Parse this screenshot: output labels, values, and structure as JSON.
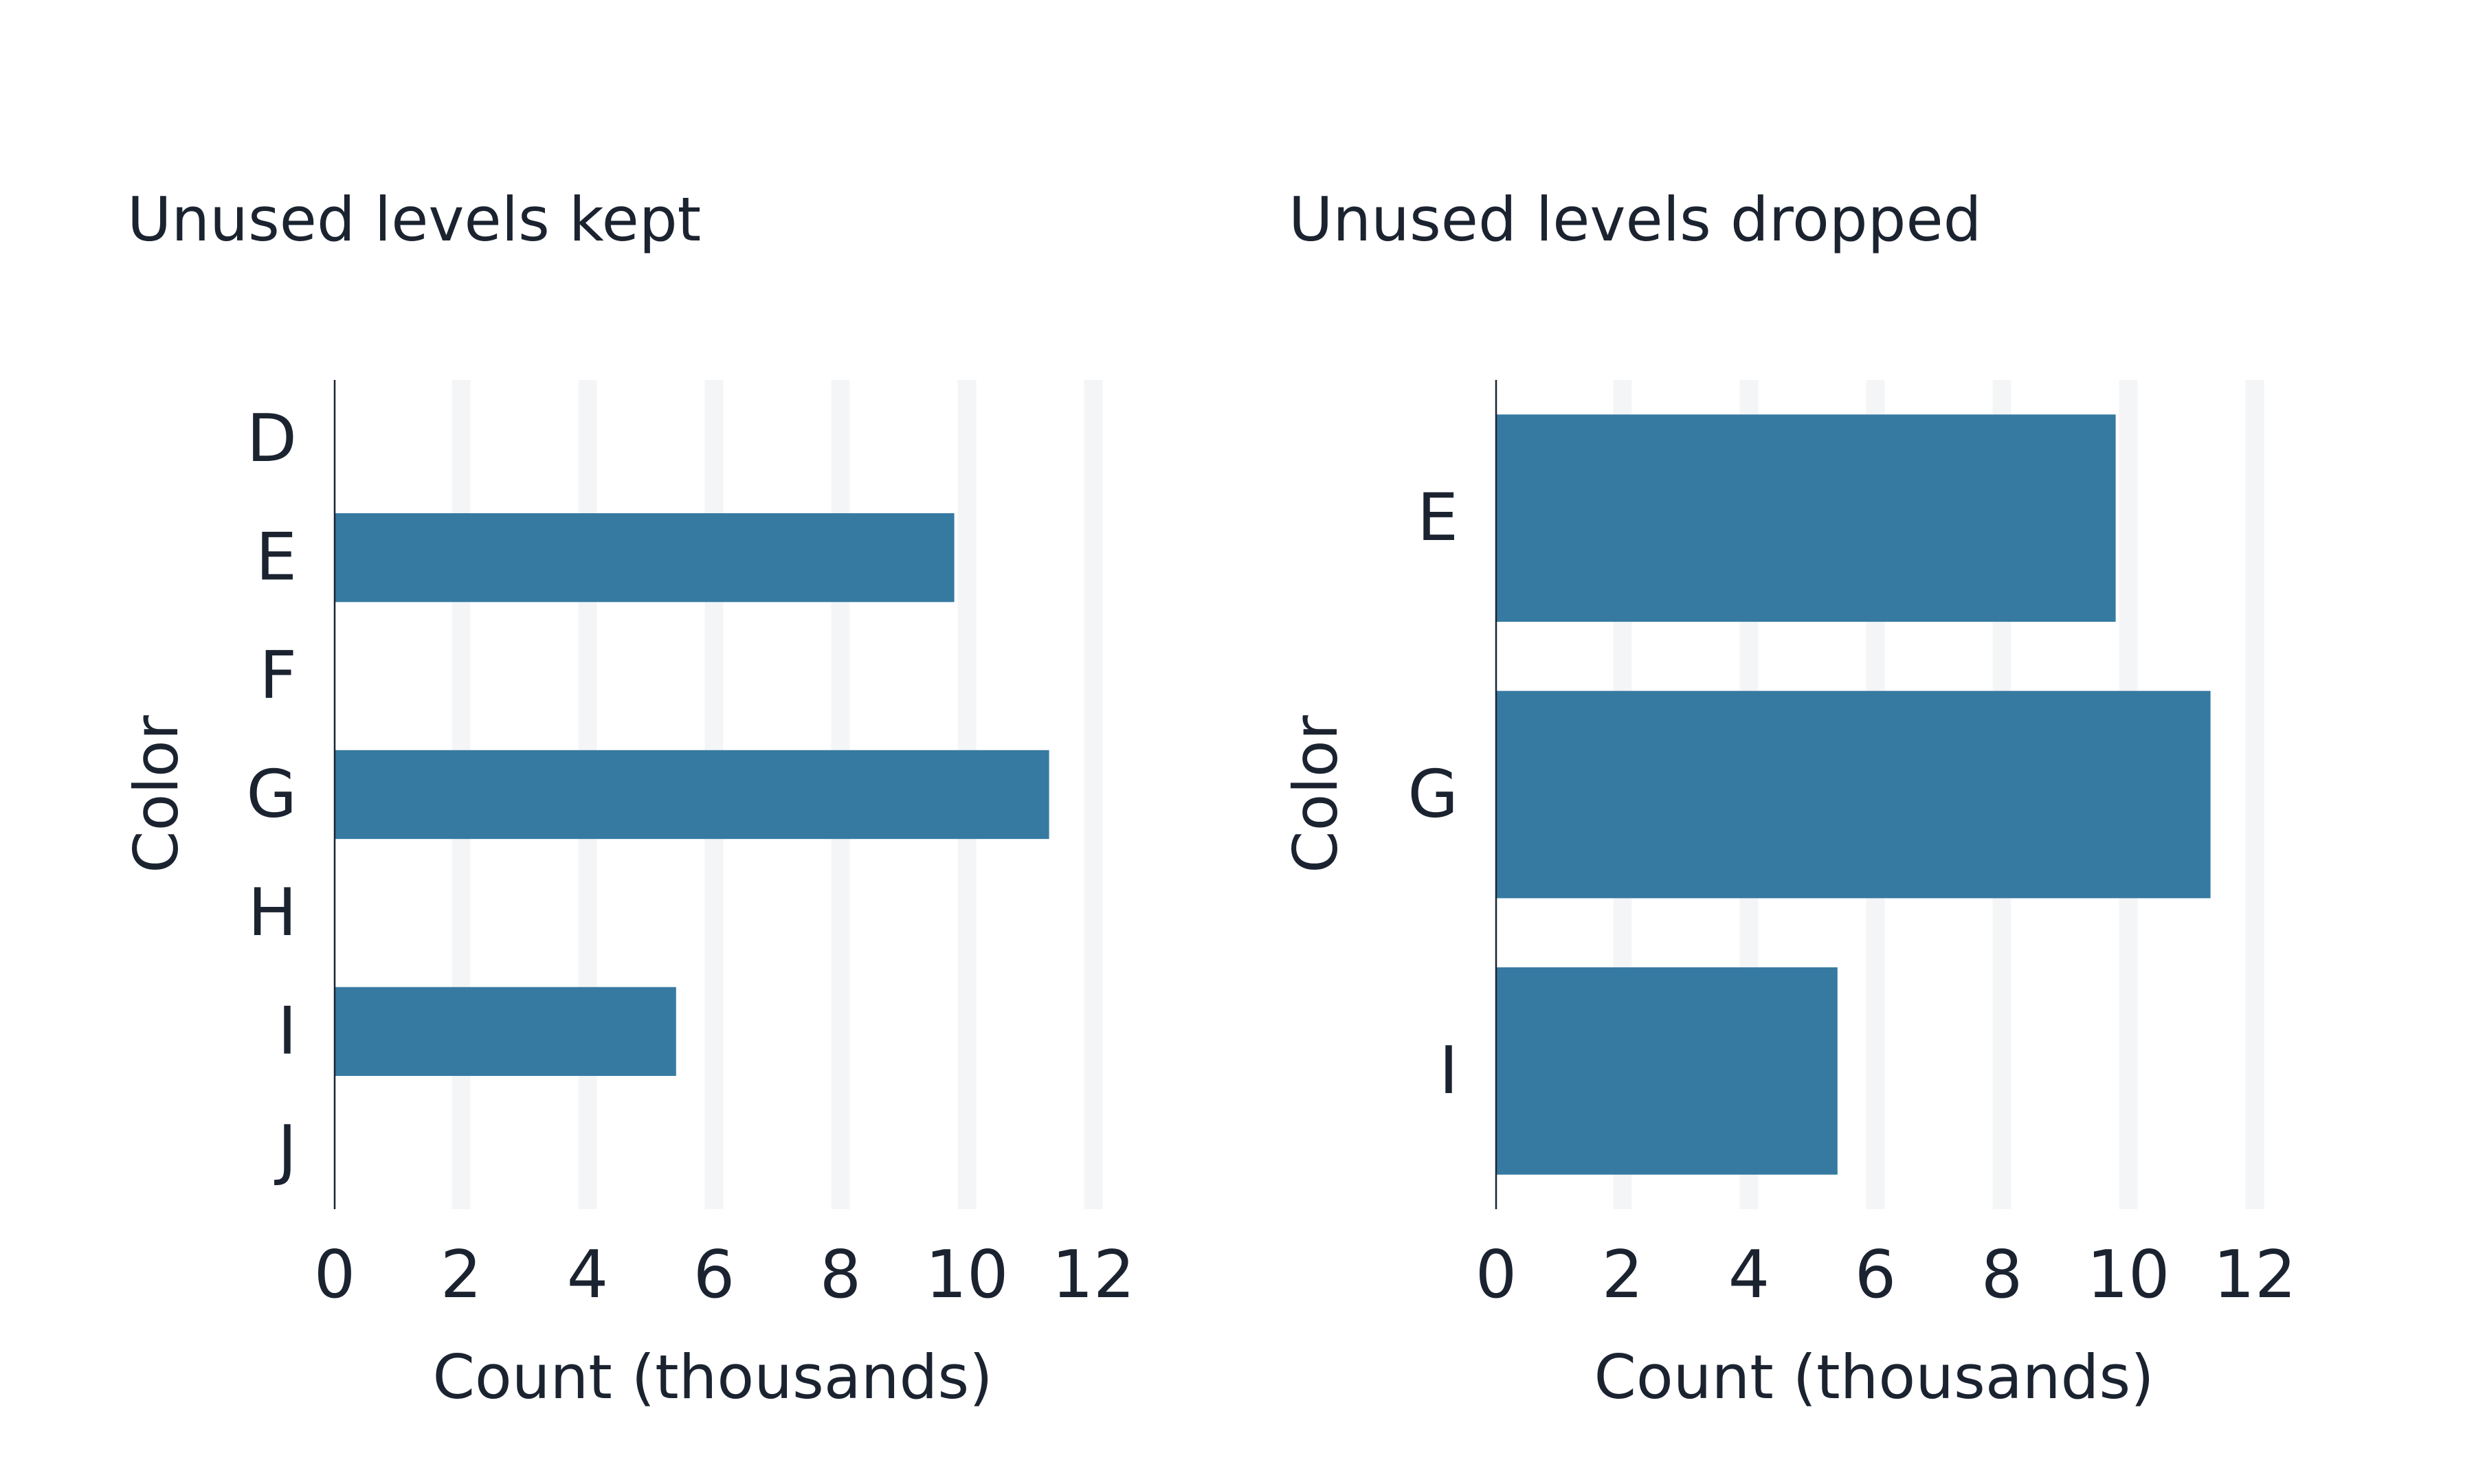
{
  "chart_data": [
    {
      "type": "bar",
      "orientation": "horizontal",
      "title": "Unused levels kept",
      "xlabel": "Count (thousands)",
      "ylabel": "Color",
      "categories": [
        "D",
        "E",
        "F",
        "G",
        "H",
        "I",
        "J"
      ],
      "values": [
        0,
        9.8,
        0,
        11.3,
        0,
        5.4,
        0
      ],
      "xlim": [
        0,
        12
      ],
      "xticks": [
        "0",
        "2",
        "4",
        "6",
        "8",
        "10",
        "12"
      ],
      "grid": "vertical",
      "bar_color": "#367aa2"
    },
    {
      "type": "bar",
      "orientation": "horizontal",
      "title": "Unused levels dropped",
      "xlabel": "Count (thousands)",
      "ylabel": "Color",
      "categories": [
        "E",
        "G",
        "I"
      ],
      "values": [
        9.8,
        11.3,
        5.4
      ],
      "xlim": [
        0,
        12
      ],
      "xticks": [
        "0",
        "2",
        "4",
        "6",
        "8",
        "10",
        "12"
      ],
      "grid": "vertical",
      "bar_color": "#367aa2"
    }
  ]
}
